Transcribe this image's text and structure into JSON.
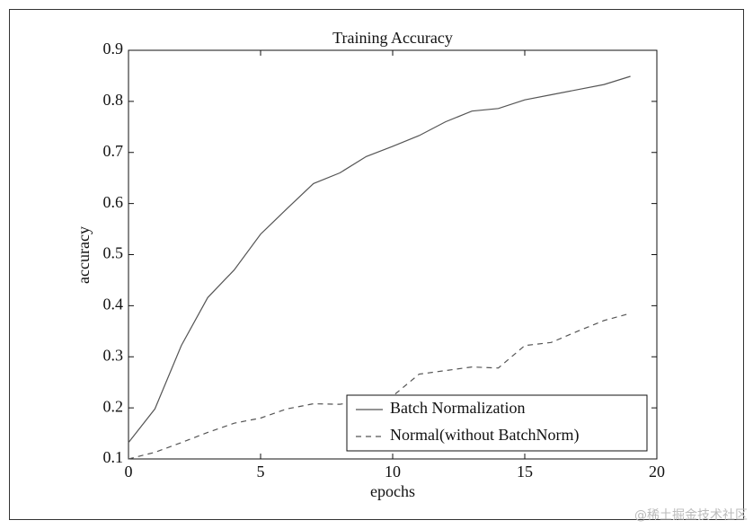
{
  "chart_data": {
    "type": "line",
    "title": "Training Accuracy",
    "x_label": "epochs",
    "y_label": "accuracy",
    "x": [
      0,
      1,
      2,
      3,
      4,
      5,
      6,
      7,
      8,
      9,
      10,
      11,
      12,
      13,
      14,
      15,
      16,
      17,
      18,
      19
    ],
    "series": [
      {
        "name": "Batch Normalization",
        "color": "#555555",
        "linestyle": "solid",
        "values": [
          0.132,
          0.198,
          0.322,
          0.416,
          0.47,
          0.54,
          0.59,
          0.639,
          0.66,
          0.692,
          0.712,
          0.733,
          0.76,
          0.781,
          0.786,
          0.803,
          0.813,
          0.823,
          0.833,
          0.849
        ]
      },
      {
        "name": "Normal(without BatchNorm)",
        "color": "#555555",
        "linestyle": "dashed",
        "values": [
          0.1,
          0.113,
          0.132,
          0.152,
          0.17,
          0.18,
          0.198,
          0.208,
          0.207,
          0.214,
          0.223,
          0.266,
          0.273,
          0.28,
          0.278,
          0.322,
          0.328,
          0.35,
          0.371,
          0.385
        ]
      }
    ],
    "xlim": [
      0,
      20
    ],
    "xticks": [
      0,
      5,
      10,
      15,
      20
    ],
    "ylim": [
      0.1,
      0.9
    ],
    "yticks": [
      0.1,
      0.2,
      0.3,
      0.4,
      0.5,
      0.6,
      0.7,
      0.8,
      0.9
    ],
    "legend": "lower right"
  },
  "watermark": "@稀土掘金技术社区"
}
